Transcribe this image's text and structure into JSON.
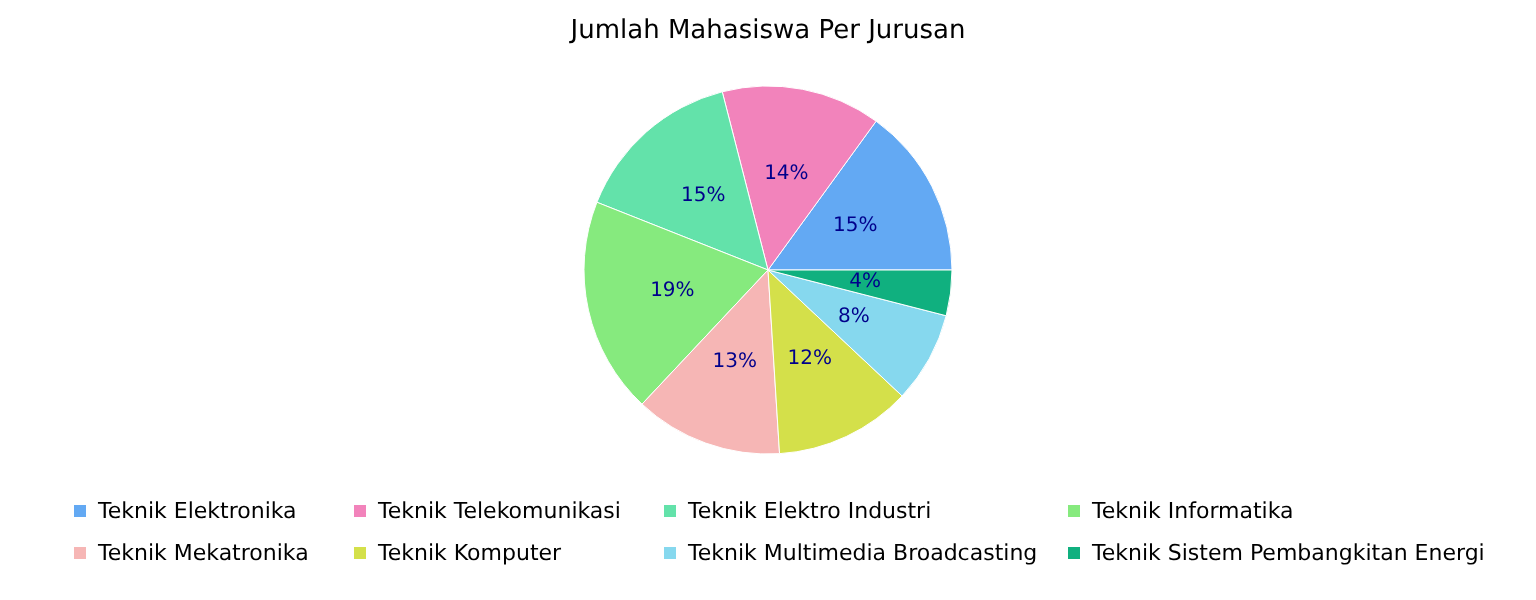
{
  "chart_data": {
    "type": "pie",
    "title": "Jumlah Mahasiswa Per Jurusan",
    "categories": [
      "Teknik Elektronika",
      "Teknik Telekomunikasi",
      "Teknik Elektro Industri",
      "Teknik Informatika",
      "Teknik Mekatronika",
      "Teknik Komputer",
      "Teknik Multimedia Broadcasting",
      "Teknik Sistem Pembangkitan Energi"
    ],
    "values": [
      15,
      14,
      15,
      19,
      13,
      12,
      8,
      4
    ],
    "value_labels": [
      "15%",
      "14%",
      "15%",
      "19%",
      "13%",
      "12%",
      "8%",
      "4%"
    ],
    "colors": [
      "#63a9f3",
      "#f283bb",
      "#63e2aa",
      "#86ea7e",
      "#f6b6b5",
      "#d4e04a",
      "#86d8ee",
      "#10b07f"
    ],
    "legend": "bottom"
  }
}
